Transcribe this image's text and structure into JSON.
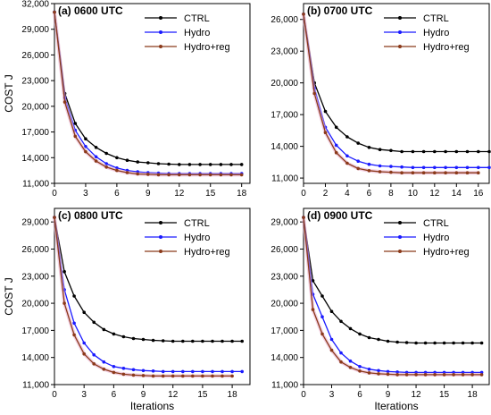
{
  "chart_data": [
    {
      "type": "line",
      "title": "(a) 0600 UTC",
      "xlabel": "",
      "ylabel": "COST J",
      "xlim": [
        0,
        18.8
      ],
      "ylim": [
        11000,
        32000
      ],
      "xticks": [
        0,
        3,
        6,
        9,
        12,
        15,
        18
      ],
      "yticks": [
        11000,
        14000,
        17000,
        20000,
        23000,
        26000,
        29000,
        32000
      ],
      "legend": "top-right",
      "series": [
        {
          "name": "CTRL",
          "color": "#000000",
          "x": [
            0,
            1,
            2,
            3,
            4,
            5,
            6,
            7,
            8,
            9,
            10,
            11,
            12,
            13,
            14,
            15,
            16,
            17,
            18
          ],
          "y": [
            31000,
            21500,
            18000,
            16200,
            15200,
            14500,
            14000,
            13700,
            13500,
            13400,
            13300,
            13250,
            13200,
            13200,
            13200,
            13200,
            13200,
            13200,
            13200
          ]
        },
        {
          "name": "Hydro",
          "color": "#1a1aff",
          "x": [
            0,
            1,
            2,
            3,
            4,
            5,
            6,
            7,
            8,
            9,
            10,
            11,
            12,
            13,
            14,
            15,
            16,
            17,
            18
          ],
          "y": [
            31000,
            21000,
            17200,
            15300,
            14100,
            13300,
            12800,
            12500,
            12350,
            12250,
            12200,
            12150,
            12150,
            12150,
            12150,
            12150,
            12150,
            12150,
            12150
          ]
        },
        {
          "name": "Hydro+reg",
          "color": "#8b3a1a",
          "x": [
            0,
            1,
            2,
            3,
            4,
            5,
            6,
            7,
            8,
            9,
            10,
            11,
            12,
            13,
            14,
            15,
            16,
            17,
            18
          ],
          "y": [
            31000,
            20500,
            16500,
            14700,
            13600,
            12900,
            12500,
            12250,
            12100,
            12050,
            12000,
            12000,
            12000,
            12000,
            12000,
            12000,
            12000,
            12000,
            12000
          ]
        }
      ]
    },
    {
      "type": "line",
      "title": "(b) 0700 UTC",
      "xlabel": "",
      "ylabel": "",
      "xlim": [
        0,
        17
      ],
      "ylim": [
        10500,
        27500
      ],
      "xticks": [
        0,
        2,
        4,
        6,
        8,
        10,
        12,
        14,
        16
      ],
      "yticks": [
        11000,
        14000,
        17000,
        20000,
        23000,
        26000
      ],
      "legend": "top-right",
      "series": [
        {
          "name": "CTRL",
          "color": "#000000",
          "x": [
            0,
            1,
            2,
            3,
            4,
            5,
            6,
            7,
            8,
            9,
            10,
            11,
            12,
            13,
            14,
            15,
            16,
            17
          ],
          "y": [
            26500,
            20000,
            17300,
            15800,
            14900,
            14300,
            13900,
            13700,
            13600,
            13500,
            13500,
            13500,
            13500,
            13500,
            13500,
            13500,
            13500,
            13500
          ]
        },
        {
          "name": "Hydro",
          "color": "#1a1aff",
          "x": [
            0,
            1,
            2,
            3,
            4,
            5,
            6,
            7,
            8,
            9,
            10,
            11,
            12,
            13,
            14,
            15,
            16,
            17
          ],
          "y": [
            26500,
            19500,
            15800,
            14100,
            13100,
            12600,
            12300,
            12150,
            12100,
            12050,
            12000,
            12000,
            12000,
            12000,
            12000,
            12000,
            12000,
            12000
          ]
        },
        {
          "name": "Hydro+reg",
          "color": "#8b3a1a",
          "x": [
            0,
            1,
            2,
            3,
            4,
            5,
            6,
            7,
            8,
            9,
            10,
            11,
            12,
            13,
            14,
            15,
            16
          ],
          "y": [
            26500,
            19000,
            15300,
            13400,
            12400,
            11900,
            11700,
            11600,
            11550,
            11500,
            11500,
            11500,
            11500,
            11500,
            11500,
            11500,
            11500
          ]
        }
      ]
    },
    {
      "type": "line",
      "title": "(c) 0800 UTC",
      "xlabel": "Iterations",
      "ylabel": "COST J",
      "xlim": [
        0,
        19.8
      ],
      "ylim": [
        11000,
        30500
      ],
      "xticks": [
        0,
        3,
        6,
        9,
        12,
        15,
        18
      ],
      "yticks": [
        11000,
        14000,
        17000,
        20000,
        23000,
        26000,
        29000
      ],
      "legend": "top-right",
      "series": [
        {
          "name": "CTRL",
          "color": "#000000",
          "x": [
            0,
            1,
            2,
            3,
            4,
            5,
            6,
            7,
            8,
            9,
            10,
            11,
            12,
            13,
            14,
            15,
            16,
            17,
            18,
            19
          ],
          "y": [
            29500,
            23500,
            20800,
            19000,
            17900,
            17100,
            16600,
            16300,
            16100,
            16000,
            15900,
            15850,
            15800,
            15800,
            15800,
            15800,
            15800,
            15800,
            15800,
            15800
          ]
        },
        {
          "name": "Hydro",
          "color": "#1a1aff",
          "x": [
            0,
            1,
            2,
            3,
            4,
            5,
            6,
            7,
            8,
            9,
            10,
            11,
            12,
            13,
            14,
            15,
            16,
            17,
            18,
            19
          ],
          "y": [
            29500,
            21500,
            17800,
            15600,
            14300,
            13500,
            13000,
            12800,
            12650,
            12550,
            12500,
            12450,
            12450,
            12450,
            12450,
            12450,
            12450,
            12450,
            12450,
            12450
          ]
        },
        {
          "name": "Hydro+reg",
          "color": "#8b3a1a",
          "x": [
            0,
            1,
            2,
            3,
            4,
            5,
            6,
            7,
            8,
            9,
            10,
            11,
            12,
            13,
            14,
            15,
            16,
            17,
            18
          ],
          "y": [
            29500,
            20000,
            16500,
            14400,
            13300,
            12700,
            12350,
            12150,
            12050,
            12000,
            11950,
            11950,
            11950,
            11950,
            11950,
            11950,
            11950,
            11950,
            11950
          ]
        }
      ]
    },
    {
      "type": "line",
      "title": "(d) 0900 UTC",
      "xlabel": "Iterations",
      "ylabel": "",
      "xlim": [
        0,
        19.8
      ],
      "ylim": [
        11000,
        30500
      ],
      "xticks": [
        0,
        3,
        6,
        9,
        12,
        15,
        18
      ],
      "yticks": [
        11000,
        14000,
        17000,
        20000,
        23000,
        26000,
        29000
      ],
      "legend": "top-right",
      "series": [
        {
          "name": "CTRL",
          "color": "#000000",
          "x": [
            0,
            1,
            2,
            3,
            4,
            5,
            6,
            7,
            8,
            9,
            10,
            11,
            12,
            13,
            14,
            15,
            16,
            17,
            18,
            19
          ],
          "y": [
            29500,
            22500,
            20800,
            19100,
            18000,
            17200,
            16600,
            16200,
            16000,
            15800,
            15700,
            15650,
            15600,
            15600,
            15600,
            15600,
            15600,
            15600,
            15600,
            15600
          ]
        },
        {
          "name": "Hydro",
          "color": "#1a1aff",
          "x": [
            0,
            1,
            2,
            3,
            4,
            5,
            6,
            7,
            8,
            9,
            10,
            11,
            12,
            13,
            14,
            15,
            16,
            17,
            18,
            19
          ],
          "y": [
            29500,
            21000,
            18500,
            16000,
            14500,
            13600,
            13000,
            12700,
            12550,
            12450,
            12400,
            12350,
            12350,
            12350,
            12350,
            12350,
            12350,
            12350,
            12350,
            12350
          ]
        },
        {
          "name": "Hydro+reg",
          "color": "#8b3a1a",
          "x": [
            0,
            1,
            2,
            3,
            4,
            5,
            6,
            7,
            8,
            9,
            10,
            11,
            12,
            13,
            14,
            15,
            16,
            17,
            18,
            19
          ],
          "y": [
            29500,
            19300,
            16600,
            14800,
            13500,
            12900,
            12500,
            12300,
            12200,
            12150,
            12100,
            12100,
            12100,
            12100,
            12100,
            12100,
            12100,
            12100,
            12100,
            12100
          ]
        }
      ]
    }
  ]
}
